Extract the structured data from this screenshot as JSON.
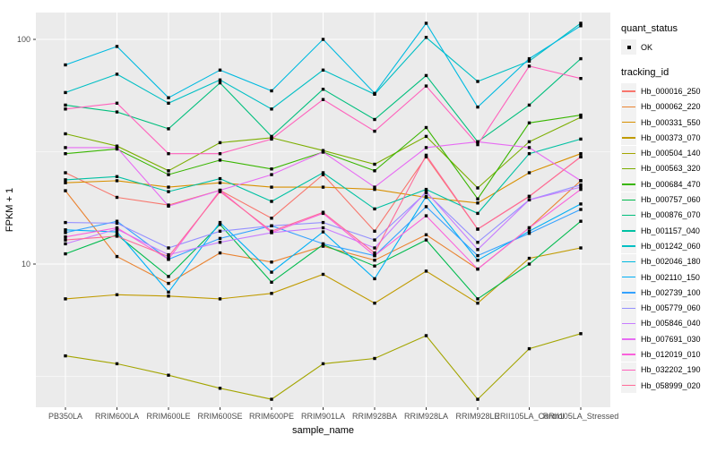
{
  "theme": {
    "panel_bg": "#EBEBEB",
    "grid_color": "#FFFFFF",
    "axis_text_color": "#4D4D4D",
    "title_text_color": "#000000",
    "legend_key_bg": "#F2F2F2",
    "point_color": "#000000"
  },
  "legend": {
    "quant_status": {
      "title": "quant_status",
      "items": [
        {
          "label": "OK",
          "symbol": "filled-point"
        }
      ]
    },
    "tracking_id_title": "tracking_id"
  },
  "chart_data": {
    "type": "line",
    "xlabel": "sample_name",
    "ylabel": "FPKM + 1",
    "y_scale": "log10",
    "y_ticks": [
      100,
      10
    ],
    "y_minor_ticks": [
      31.623,
      3.1623
    ],
    "ylim": [
      2.3,
      132
    ],
    "grid": true,
    "legend_position": "right",
    "point_shape": "filled-square",
    "categories": [
      "PB350LA",
      "RRIM600LA",
      "RRIM600LE",
      "RRIM600SE",
      "RRIM600PE",
      "RRIM901LA",
      "RRIM928BA",
      "RRIM928LA",
      "RRIM928LE",
      "RRII105LA_Control",
      "RRII105LA_Stressed"
    ],
    "series": [
      {
        "name": "Hb_000016_250",
        "color": "#F8766D",
        "values": [
          25.5,
          19.8,
          18.3,
          21.3,
          16,
          25,
          14,
          30,
          14.3,
          20,
          30
        ]
      },
      {
        "name": "Hb_000062_220",
        "color": "#EA8331",
        "values": [
          21.2,
          10.8,
          8.2,
          11.2,
          10.2,
          12,
          10.4,
          13.5,
          9.5,
          14.5,
          23.5
        ]
      },
      {
        "name": "Hb_000331_550",
        "color": "#D89000",
        "values": [
          23,
          23.5,
          22,
          23,
          22,
          22,
          21.5,
          19.8,
          18.7,
          25.5,
          31
        ]
      },
      {
        "name": "Hb_000373_070",
        "color": "#C09B00",
        "values": [
          7.0,
          7.3,
          7.2,
          7.0,
          7.4,
          9.0,
          6.7,
          9.3,
          6.7,
          10.6,
          11.8
        ]
      },
      {
        "name": "Hb_000504_140",
        "color": "#A3A500",
        "values": [
          3.9,
          3.6,
          3.2,
          2.8,
          2.5,
          3.6,
          3.8,
          4.8,
          2.5,
          4.2,
          4.9
        ]
      },
      {
        "name": "Hb_000563_320",
        "color": "#7CAE00",
        "values": [
          38,
          33.5,
          26,
          34.7,
          36.5,
          32,
          27.8,
          37,
          21.8,
          35,
          45
        ]
      },
      {
        "name": "Hb_000684_470",
        "color": "#39B600",
        "values": [
          31,
          32.5,
          25,
          29,
          26.5,
          31.5,
          26,
          40.5,
          19.5,
          42.5,
          46
        ]
      },
      {
        "name": "Hb_000757_060",
        "color": "#00BB4E",
        "values": [
          11.1,
          13.5,
          8.8,
          15,
          8.3,
          12.2,
          9.8,
          12.8,
          7.0,
          10,
          15.5
        ]
      },
      {
        "name": "Hb_000876_070",
        "color": "#00BF7D",
        "values": [
          51,
          47.5,
          40,
          64,
          37,
          60,
          44,
          69,
          35,
          51,
          82
        ]
      },
      {
        "name": "Hb_001157_040",
        "color": "#00C1A3",
        "values": [
          23.7,
          24.5,
          21,
          24,
          19,
          25.5,
          17.6,
          21.5,
          16.8,
          31,
          36
        ]
      },
      {
        "name": "Hb_001242_060",
        "color": "#00BFC4",
        "values": [
          58,
          70,
          52,
          66,
          49,
          73,
          57,
          102,
          65,
          80,
          118
        ]
      },
      {
        "name": "Hb_002046_180",
        "color": "#00BAE0",
        "values": [
          77,
          93,
          55,
          73,
          59,
          100,
          57.5,
          118,
          50,
          82,
          115
        ]
      },
      {
        "name": "Hb_002110_150",
        "color": "#00B0F6",
        "values": [
          14.2,
          13.9,
          7.5,
          15.3,
          9.2,
          13.9,
          8.6,
          20,
          10.4,
          14,
          18.5
        ]
      },
      {
        "name": "Hb_002739_100",
        "color": "#35A2FF",
        "values": [
          13.8,
          15.5,
          10.5,
          13,
          14.8,
          12.3,
          10.9,
          18,
          10.9,
          13.7,
          17.5
        ]
      },
      {
        "name": "Hb_005779_060",
        "color": "#9590FF",
        "values": [
          15.3,
          15.2,
          11.8,
          14,
          14.8,
          15.3,
          12.8,
          20.8,
          12.5,
          19.3,
          22.5
        ]
      },
      {
        "name": "Hb_005846_040",
        "color": "#C77CFF",
        "values": [
          12.3,
          14.3,
          11,
          12.5,
          13.8,
          14.5,
          11.8,
          21,
          11.6,
          19.3,
          22
        ]
      },
      {
        "name": "Hb_007691_030",
        "color": "#E76BF3",
        "values": [
          33,
          33,
          18.1,
          21.3,
          25,
          31.5,
          22,
          33,
          35,
          33,
          23.5
        ]
      },
      {
        "name": "Hb_012019_010",
        "color": "#FA62DB",
        "values": [
          13.2,
          14.5,
          10.5,
          21.3,
          13.8,
          16.8,
          10.9,
          16.4,
          9.5,
          14.5,
          21.5
        ]
      },
      {
        "name": "Hb_032202_190",
        "color": "#FF62BC",
        "values": [
          49,
          52,
          31,
          31,
          36,
          54,
          39,
          62,
          34,
          76,
          67
        ]
      },
      {
        "name": "Hb_058999_020",
        "color": "#FF6A98",
        "values": [
          12.8,
          13.3,
          10.8,
          21,
          14,
          17,
          11.2,
          30.5,
          14.3,
          20,
          30
        ]
      }
    ]
  }
}
